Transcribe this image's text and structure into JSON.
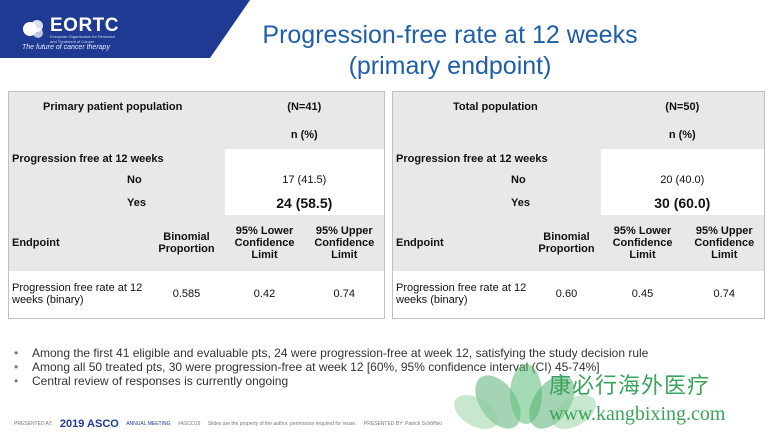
{
  "header": {
    "logo_name": "EORTC",
    "logo_sub": "European Organisation for Research and Treatment of Cancer",
    "tagline": "The future of cancer therapy"
  },
  "title": {
    "line1": "Progression-free rate at 12 weeks",
    "line2": "(primary endpoint)"
  },
  "panel_a": {
    "population": "Primary patient population",
    "n": "(N=41)",
    "unit": "n (%)",
    "pfs_label": "Progression free at 12 weeks",
    "no_label": "No",
    "no_value": "17 (41.5)",
    "yes_label": "Yes",
    "yes_value": "24 (58.5)",
    "endpoint": "Endpoint",
    "col_binomial": "Binomial Proportion",
    "col_lower": "95% Lower Confidence Limit",
    "col_upper": "95% Upper Confidence Limit",
    "row_label": "Progression free rate at 12 weeks (binary)",
    "binomial": "0.585",
    "lower": "0.42",
    "upper": "0.74"
  },
  "panel_b": {
    "population": "Total population",
    "n": "(N=50)",
    "unit": "n (%)",
    "pfs_label": "Progression free at 12 weeks",
    "no_label": "No",
    "no_value": "20 (40.0)",
    "yes_label": "Yes",
    "yes_value": "30 (60.0)",
    "endpoint": "Endpoint",
    "col_binomial": "Binomial Proportion",
    "col_lower": "95% Lower Confidence Limit",
    "col_upper": "95% Upper Confidence Limit",
    "row_label": "Progression free rate at 12 weeks (binary)",
    "binomial": "0.60",
    "lower": "0.45",
    "upper": "0.74"
  },
  "bullets": [
    "Among the first 41 eligible and evaluable pts, 24 were progression-free at week 12, satisfying the study decision rule",
    "Among all 50 treated pts, 30 were progression-free at week 12 [60%, 95% confidence interval (CI) 45-74%]",
    "Central review of responses is currently ongoing"
  ],
  "footer": {
    "presented_at": "PRESENTED AT:",
    "asco_year": "2019 ASCO",
    "asco_meeting": "ANNUAL MEETING",
    "hashtag": "#ASCO19",
    "slides_note": "Slides are the property of the author, permission required for reuse.",
    "presented_by": "PRESENTED BY: Patrick Schöffski"
  },
  "watermark": {
    "cn": "康必行海外医疗",
    "url": "www.kangbixing.com"
  }
}
